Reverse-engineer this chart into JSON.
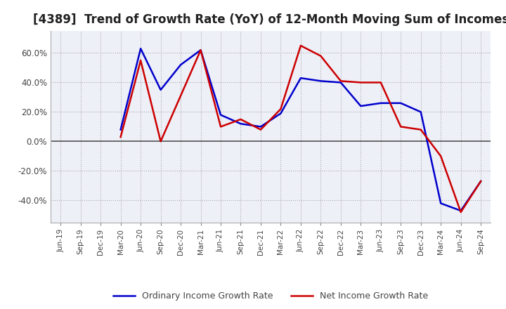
{
  "title": "[4389]  Trend of Growth Rate (YoY) of 12-Month Moving Sum of Incomes",
  "title_fontsize": 12,
  "background_color": "#ffffff",
  "plot_bg_color": "#eef0f8",
  "grid_color": "#aaaaaa",
  "zero_line_color": "#555555",
  "ylim": [
    -55,
    75
  ],
  "yticks": [
    -40,
    -20,
    0,
    20,
    40,
    60
  ],
  "legend_labels": [
    "Ordinary Income Growth Rate",
    "Net Income Growth Rate"
  ],
  "line_colors": [
    "#0000cc",
    "#cc0000"
  ],
  "dates": [
    "Jun-19",
    "Sep-19",
    "Dec-19",
    "Mar-20",
    "Jun-20",
    "Sep-20",
    "Dec-20",
    "Mar-21",
    "Jun-21",
    "Sep-21",
    "Dec-21",
    "Mar-22",
    "Jun-22",
    "Sep-22",
    "Dec-22",
    "Mar-23",
    "Jun-23",
    "Sep-23",
    "Dec-23",
    "Mar-24",
    "Jun-24",
    "Sep-24"
  ],
  "ordinary_income": [
    null,
    null,
    null,
    8,
    63,
    35,
    52,
    62,
    18,
    12,
    10,
    19,
    43,
    41,
    40,
    24,
    26,
    26,
    20,
    -42,
    -47,
    -27
  ],
  "net_income": [
    null,
    null,
    null,
    3,
    55,
    0,
    31,
    62,
    10,
    15,
    8,
    22,
    65,
    58,
    41,
    40,
    40,
    10,
    8,
    -10,
    -48,
    -27
  ]
}
